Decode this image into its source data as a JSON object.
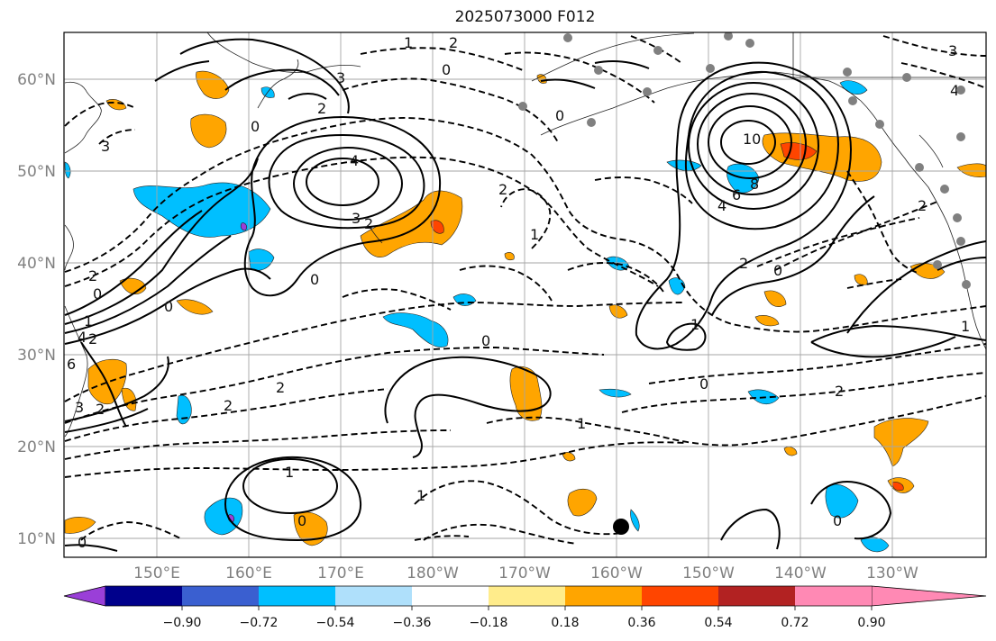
{
  "title": "2025073000 F012",
  "lat_labels": [
    "60°N",
    "50°N",
    "40°N",
    "30°N",
    "20°N",
    "10°N"
  ],
  "lon_labels": [
    "150°E",
    "160°E",
    "170°E",
    "180°W",
    "170°W",
    "160°W",
    "150°W",
    "140°W",
    "130°W"
  ],
  "colorbar": {
    "tick_labels": [
      "−0.90",
      "−0.72",
      "−0.54",
      "−0.36",
      "−0.18",
      "0.18",
      "0.36",
      "0.54",
      "0.72",
      "0.90"
    ],
    "colors": [
      "#9a3fd8",
      "#00008b",
      "#3a5fd0",
      "#00bfff",
      "#afe0fb",
      "#ffffff",
      "#ffec8b",
      "#ffa500",
      "#ff4500",
      "#b22222",
      "#ff89b4"
    ]
  },
  "contour_labels": [
    "1",
    "2",
    "0",
    "3",
    "4",
    "0",
    "2",
    "3",
    "2",
    "0",
    "1",
    "2",
    "0",
    "2",
    "4",
    "6",
    "3",
    "0",
    "3",
    "2",
    "2",
    "0",
    "1",
    "10",
    "8",
    "6",
    "4",
    "2",
    "2",
    "0",
    "1",
    "0",
    "1",
    "2",
    "2",
    "0",
    "1",
    "1",
    "0",
    "0",
    "0",
    "3",
    "4",
    "2",
    "1"
  ],
  "markers": {
    "large_dot": "filled-circle",
    "stations": "grey-dots"
  }
}
